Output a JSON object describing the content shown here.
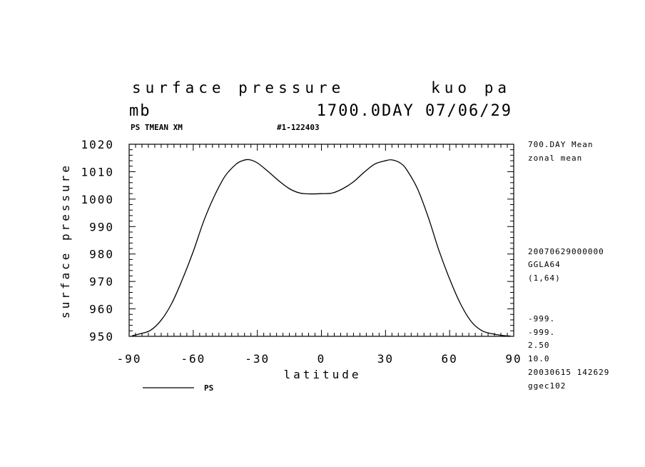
{
  "header": {
    "title": "surface pressure",
    "title_right": "kuo pa",
    "units": "mb",
    "time_label": "1700.0DAY 07/06/29",
    "var_label": "PS TMEAN XM",
    "run_label": "#1-122403"
  },
  "side_info": {
    "lines_top": [
      "700.DAY Mean",
      "zonal mean"
    ],
    "lines_mid": [
      "20070629000000",
      "GGLA64",
      "(1,64)"
    ],
    "lines_bottom": [
      "-999.",
      "-999.",
      "2.50",
      "10.0",
      "20030615 142629",
      "ggec102"
    ]
  },
  "legend": {
    "series_label": "PS"
  },
  "chart_data": {
    "type": "line",
    "title": "surface pressure",
    "xlabel": "latitude",
    "ylabel": "surface pressure",
    "xlim": [
      -90,
      90
    ],
    "ylim": [
      950,
      1020
    ],
    "xticks": [
      "-90",
      "-60",
      "-30",
      "0",
      "30",
      "60",
      "90"
    ],
    "yticks": [
      "950",
      "960",
      "970",
      "980",
      "990",
      "1000",
      "1010",
      "1020"
    ],
    "series": [
      {
        "name": "PS",
        "x": [
          -88.6,
          -85,
          -80,
          -75,
          -70,
          -65,
          -60,
          -55,
          -50,
          -45,
          -40,
          -37,
          -34,
          -30,
          -25,
          -20,
          -15,
          -10,
          -5,
          0,
          5,
          10,
          15,
          20,
          25,
          30,
          33,
          37,
          40,
          45,
          50,
          55,
          60,
          65,
          70,
          75,
          80,
          85,
          88.6
        ],
        "y": [
          950.2,
          950.9,
          952.2,
          955.9,
          962.1,
          970.9,
          980.9,
          992.2,
          1001.3,
          1008.5,
          1012.7,
          1014.0,
          1014.4,
          1013.2,
          1010.1,
          1006.7,
          1003.8,
          1002.2,
          1001.9,
          1002.0,
          1002.2,
          1003.8,
          1006.3,
          1009.8,
          1012.8,
          1014.0,
          1014.3,
          1013.1,
          1010.6,
          1003.7,
          993.4,
          981.3,
          970.9,
          962.0,
          955.5,
          952.1,
          950.9,
          950.3,
          950.1
        ]
      }
    ]
  }
}
